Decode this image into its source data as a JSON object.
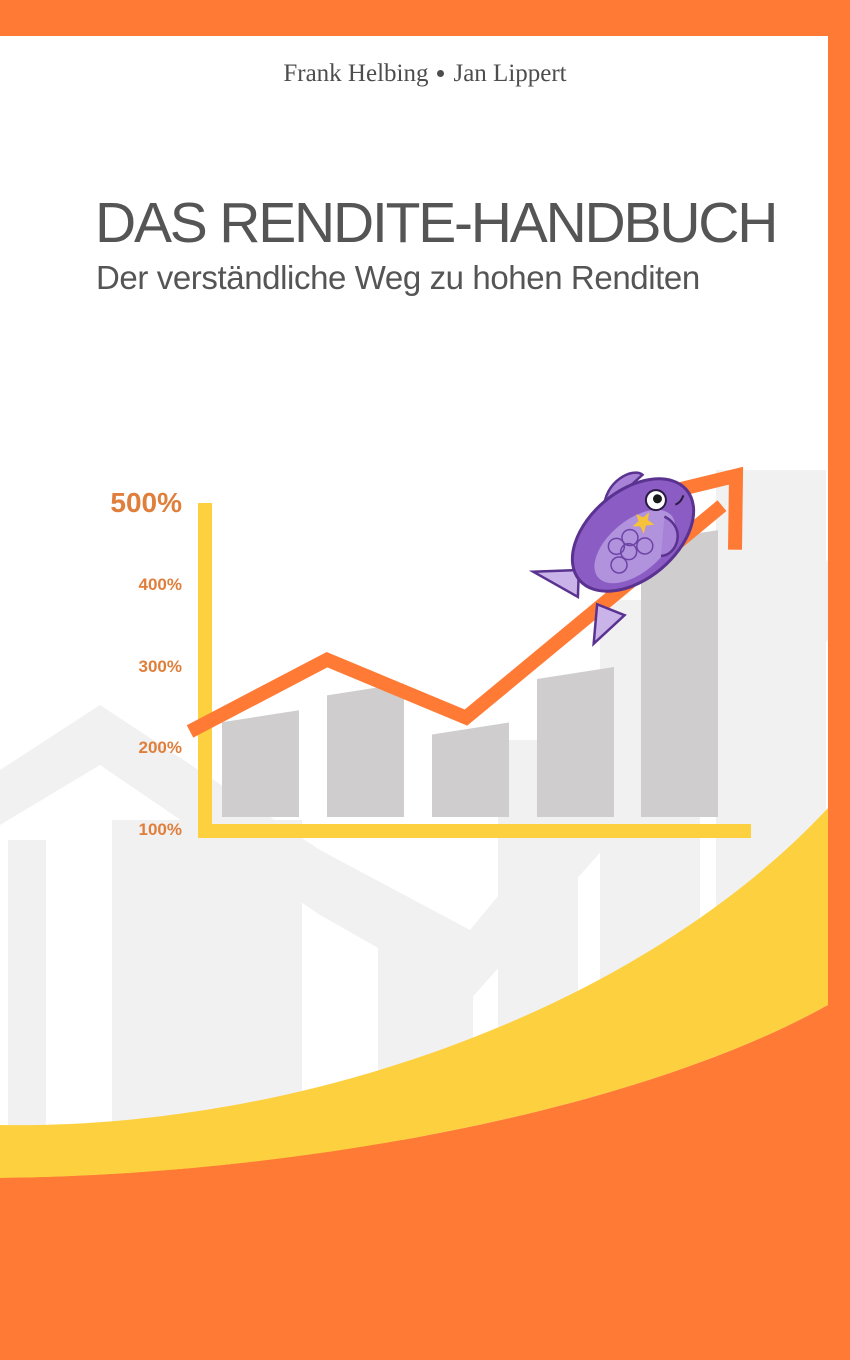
{
  "cover": {
    "authors": [
      "Frank Helbing",
      "Jan Lippert"
    ],
    "title": "DAS RENDITE-HANDBUCH",
    "subtitle": "Der verständliche Weg zu hohen Renditen",
    "colors": {
      "frame": "#ff7a35",
      "yellow": "#fdd040",
      "page": "#ffffff",
      "text": "#555555",
      "bar": "#cfcdcd",
      "tick": "#e07f3c",
      "fish": "#8a5cc4"
    }
  },
  "chart_data": {
    "type": "bar",
    "y_ticks": [
      "500%",
      "400%",
      "300%",
      "200%",
      "100%"
    ],
    "ylim": [
      100,
      500
    ],
    "values": [
      231,
      264,
      216,
      284,
      452
    ],
    "trend": [
      205,
      293,
      222,
      482
    ],
    "grid": false
  }
}
